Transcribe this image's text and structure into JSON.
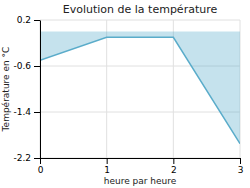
{
  "chart_data": {
    "type": "area",
    "title": "Evolution de la température",
    "xlabel": "heure par heure",
    "ylabel": "Température en °C",
    "x": [
      0,
      1,
      2,
      3
    ],
    "values": [
      -0.5,
      -0.1,
      -0.1,
      -1.95
    ],
    "color": "#5aacca",
    "xlim": [
      0,
      3
    ],
    "ylim": [
      -2.2,
      0.2
    ],
    "xticks": [
      0,
      1,
      2,
      3
    ],
    "yticks": [
      0.2,
      -0.6,
      -1.4,
      -2.2
    ],
    "grid": true
  }
}
